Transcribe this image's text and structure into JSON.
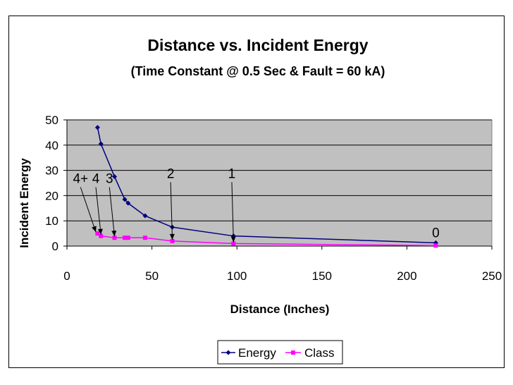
{
  "chart_data": {
    "type": "line",
    "title": "Distance vs. Incident Energy",
    "subtitle": "(Time Constant @ 0.5 Sec & Fault = 60 kA)",
    "xlabel": "Distance (Inches)",
    "ylabel": "Incident Energy",
    "xlim": [
      0,
      250
    ],
    "ylim": [
      0,
      50
    ],
    "xticks": [
      0,
      50,
      100,
      150,
      200,
      250
    ],
    "yticks": [
      0,
      10,
      20,
      30,
      40,
      50
    ],
    "grid": "horizontal",
    "plot_background": "#c0c0c0",
    "legend_position": "bottom",
    "series": [
      {
        "name": "Energy",
        "color": "#000080",
        "marker": "diamond",
        "points": [
          [
            18,
            47
          ],
          [
            20,
            40.5
          ],
          [
            28,
            27.5
          ],
          [
            34,
            18.5
          ],
          [
            36,
            17
          ],
          [
            46,
            12
          ],
          [
            62,
            7.5
          ],
          [
            98,
            4
          ],
          [
            217,
            1.3
          ]
        ]
      },
      {
        "name": "Class",
        "color": "#ff00ff",
        "marker": "square",
        "points": [
          [
            18,
            5
          ],
          [
            20,
            4
          ],
          [
            28,
            3.3
          ],
          [
            34,
            3.3
          ],
          [
            36,
            3.3
          ],
          [
            46,
            3.3
          ],
          [
            62,
            2
          ],
          [
            98,
            1
          ],
          [
            217,
            0.2
          ]
        ]
      }
    ],
    "annotations": [
      {
        "text": "4+",
        "x": 8,
        "y": 25,
        "arrow_to": [
          17,
          5
        ]
      },
      {
        "text": "4",
        "x": 17,
        "y": 25,
        "arrow_to": [
          20,
          4
        ]
      },
      {
        "text": "3",
        "x": 25,
        "y": 25,
        "arrow_to": [
          28,
          3.3
        ]
      },
      {
        "text": "2",
        "x": 61,
        "y": 27,
        "arrow_to": [
          62,
          2
        ]
      },
      {
        "text": "1",
        "x": 97,
        "y": 27,
        "arrow_to": [
          98,
          1
        ]
      },
      {
        "text": "0",
        "x": 217,
        "y": 3.5,
        "arrow_to": null
      }
    ]
  }
}
